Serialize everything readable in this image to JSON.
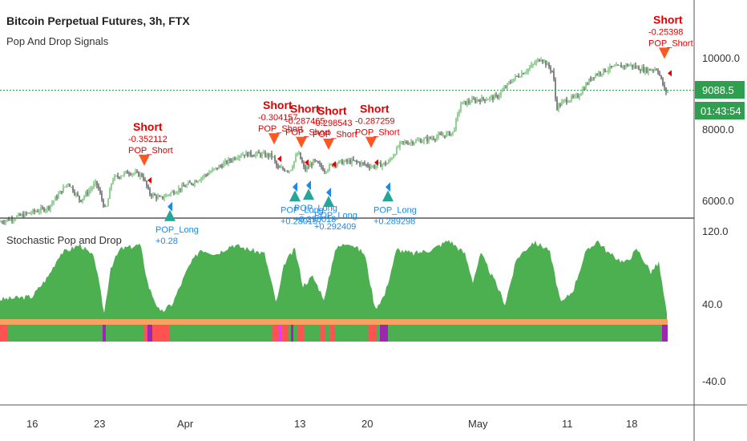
{
  "header": {
    "title": "Bitcoin Perpetual Futures, 3h, FTX",
    "indicator_name": "Pop And Drop Signals"
  },
  "lower_panel": {
    "title": "Stochastic Pop and Drop"
  },
  "price_axis": {
    "ticks": [
      "10000.0",
      "8000.0",
      "6000.0"
    ],
    "current_price": "9088.5",
    "countdown": "01:43:54"
  },
  "osc_axis": {
    "ticks": [
      "120.0",
      "40.0",
      "-40.0"
    ]
  },
  "time_axis": {
    "ticks": [
      "16",
      "23",
      "Apr",
      "13",
      "20",
      "May",
      "11",
      "18"
    ]
  },
  "colors": {
    "up_candle": "#4caf50",
    "down_candle": "#333333",
    "short_marker": "#ff5722",
    "short_text": "#e00000",
    "long_marker": "#26a69a",
    "long_text": "#1e88e5",
    "osc_fill": "#4caf50",
    "band_orange": "#f4a460",
    "band_red": "#ff5252",
    "band_purple": "#9c27b0",
    "band_magenta": "#e040fb",
    "price_line": "#2e9e4f"
  },
  "chart_data": [
    {
      "type": "candlestick",
      "title": "Bitcoin Perpetual Futures, 3h, FTX",
      "ylim": [
        5800,
        11000
      ],
      "current_price": 9088.5,
      "x_ticks": [
        "16",
        "23",
        "Apr",
        "13",
        "20",
        "May",
        "11",
        "18"
      ],
      "price_path": [
        {
          "x": 0,
          "y": 5400
        },
        {
          "x": 60,
          "y": 5800
        },
        {
          "x": 85,
          "y": 6500
        },
        {
          "x": 100,
          "y": 6000
        },
        {
          "x": 120,
          "y": 6500
        },
        {
          "x": 132,
          "y": 5700
        },
        {
          "x": 140,
          "y": 6600
        },
        {
          "x": 160,
          "y": 6800
        },
        {
          "x": 178,
          "y": 6700
        },
        {
          "x": 186,
          "y": 6200
        },
        {
          "x": 200,
          "y": 6050
        },
        {
          "x": 212,
          "y": 6200
        },
        {
          "x": 240,
          "y": 6500
        },
        {
          "x": 270,
          "y": 6900
        },
        {
          "x": 300,
          "y": 7300
        },
        {
          "x": 320,
          "y": 7300
        },
        {
          "x": 340,
          "y": 7250
        },
        {
          "x": 346,
          "y": 6900
        },
        {
          "x": 362,
          "y": 6850
        },
        {
          "x": 372,
          "y": 7350
        },
        {
          "x": 380,
          "y": 6850
        },
        {
          "x": 392,
          "y": 7100
        },
        {
          "x": 405,
          "y": 6850
        },
        {
          "x": 418,
          "y": 7050
        },
        {
          "x": 440,
          "y": 7100
        },
        {
          "x": 465,
          "y": 6950
        },
        {
          "x": 484,
          "y": 7050
        },
        {
          "x": 500,
          "y": 7600
        },
        {
          "x": 530,
          "y": 7700
        },
        {
          "x": 565,
          "y": 7900
        },
        {
          "x": 575,
          "y": 8700
        },
        {
          "x": 590,
          "y": 8800
        },
        {
          "x": 620,
          "y": 8900
        },
        {
          "x": 640,
          "y": 9400
        },
        {
          "x": 660,
          "y": 9700
        },
        {
          "x": 675,
          "y": 10000
        },
        {
          "x": 690,
          "y": 9600
        },
        {
          "x": 694,
          "y": 8600
        },
        {
          "x": 705,
          "y": 8800
        },
        {
          "x": 720,
          "y": 8900
        },
        {
          "x": 740,
          "y": 9500
        },
        {
          "x": 760,
          "y": 9700
        },
        {
          "x": 785,
          "y": 9800
        },
        {
          "x": 805,
          "y": 9650
        },
        {
          "x": 820,
          "y": 9700
        },
        {
          "x": 830,
          "y": 9050
        },
        {
          "x": 836,
          "y": 9088.5
        }
      ]
    },
    {
      "type": "area",
      "title": "Stochastic Pop and Drop",
      "ylim": [
        -70,
        130
      ],
      "baseline": 22,
      "values": [
        {
          "x": 0,
          "y": 45
        },
        {
          "x": 40,
          "y": 48
        },
        {
          "x": 60,
          "y": 70
        },
        {
          "x": 75,
          "y": 95
        },
        {
          "x": 100,
          "y": 105
        },
        {
          "x": 118,
          "y": 90
        },
        {
          "x": 130,
          "y": 30
        },
        {
          "x": 138,
          "y": 80
        },
        {
          "x": 150,
          "y": 100
        },
        {
          "x": 175,
          "y": 105
        },
        {
          "x": 185,
          "y": 60
        },
        {
          "x": 200,
          "y": 30
        },
        {
          "x": 215,
          "y": 40
        },
        {
          "x": 235,
          "y": 80
        },
        {
          "x": 250,
          "y": 100
        },
        {
          "x": 270,
          "y": 95
        },
        {
          "x": 290,
          "y": 105
        },
        {
          "x": 310,
          "y": 100
        },
        {
          "x": 330,
          "y": 95
        },
        {
          "x": 345,
          "y": 40
        },
        {
          "x": 355,
          "y": 85
        },
        {
          "x": 368,
          "y": 100
        },
        {
          "x": 378,
          "y": 60
        },
        {
          "x": 390,
          "y": 70
        },
        {
          "x": 405,
          "y": 45
        },
        {
          "x": 418,
          "y": 100
        },
        {
          "x": 435,
          "y": 108
        },
        {
          "x": 455,
          "y": 95
        },
        {
          "x": 468,
          "y": 35
        },
        {
          "x": 480,
          "y": 50
        },
        {
          "x": 495,
          "y": 100
        },
        {
          "x": 515,
          "y": 95
        },
        {
          "x": 540,
          "y": 100
        },
        {
          "x": 560,
          "y": 110
        },
        {
          "x": 580,
          "y": 95
        },
        {
          "x": 590,
          "y": 65
        },
        {
          "x": 600,
          "y": 95
        },
        {
          "x": 620,
          "y": 60
        },
        {
          "x": 630,
          "y": 40
        },
        {
          "x": 645,
          "y": 90
        },
        {
          "x": 665,
          "y": 108
        },
        {
          "x": 685,
          "y": 100
        },
        {
          "x": 700,
          "y": 40
        },
        {
          "x": 715,
          "y": 55
        },
        {
          "x": 730,
          "y": 95
        },
        {
          "x": 745,
          "y": 110
        },
        {
          "x": 760,
          "y": 95
        },
        {
          "x": 780,
          "y": 85
        },
        {
          "x": 795,
          "y": 100
        },
        {
          "x": 812,
          "y": 75
        },
        {
          "x": 822,
          "y": 85
        },
        {
          "x": 832,
          "y": 28
        }
      ]
    }
  ],
  "signals": {
    "short": [
      {
        "label": "Short",
        "value": "-0.352112",
        "tag": "POP_Short",
        "x": 180,
        "y": 6700
      },
      {
        "label": "Short",
        "value": "-0.304157",
        "tag": "POP_Short",
        "x": 342,
        "y": 7300
      },
      {
        "label": "Short",
        "value": "-0.287465",
        "tag": "POP_Short",
        "x": 376,
        "y": 7200
      },
      {
        "label": "Short",
        "value": "-0.298543",
        "tag": "POP_Short",
        "x": 410,
        "y": 7150
      },
      {
        "label": "Short",
        "value": "-0.287259",
        "tag": "POP_Short",
        "x": 463,
        "y": 7200
      },
      {
        "label": "Short",
        "value": "-0.25398",
        "tag": "POP_Short",
        "x": 829,
        "y": 9700
      }
    ],
    "long": [
      {
        "label": "POP_Long",
        "value": "+0.28",
        "x": 212,
        "y": 6050
      },
      {
        "label": "POP_Long",
        "value": "+0.280157",
        "x": 368,
        "y": 6600
      },
      {
        "label": "POP_Long",
        "value": "+0.296018",
        "x": 385,
        "y": 6650
      },
      {
        "label": "POP_Long",
        "value": "+0.292409",
        "x": 410,
        "y": 6450
      },
      {
        "label": "POP_Long",
        "value": "+0.289298",
        "x": 484,
        "y": 6600
      }
    ]
  }
}
